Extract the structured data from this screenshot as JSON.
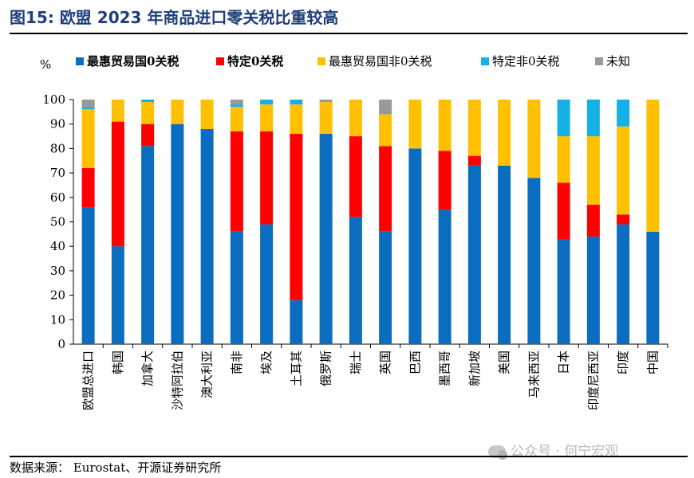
{
  "header": {
    "figure_no": "图15:",
    "title": "欧盟 2023 年商品进口零关税比重较高"
  },
  "source": {
    "text": "数据来源：  Eurostat、开源证券研究所"
  },
  "watermark": {
    "text": "公众号 · 何宁宏观"
  },
  "chart_data": {
    "type": "bar",
    "stacked": true,
    "title": "欧盟 2023 年商品进口零关税比重较高",
    "ylabel": "%",
    "xlabel": "",
    "ylim": [
      0,
      100
    ],
    "yticks": [
      0,
      10,
      20,
      30,
      40,
      50,
      60,
      70,
      80,
      90,
      100
    ],
    "legend_position": "top",
    "categories": [
      "欧盟总进口",
      "韩国",
      "加拿大",
      "沙特阿拉伯",
      "澳大利亚",
      "南非",
      "埃及",
      "土耳其",
      "俄罗斯",
      "瑞士",
      "英国",
      "巴西",
      "墨西哥",
      "新加坡",
      "美国",
      "马来西亚",
      "日本",
      "印度尼西亚",
      "印度",
      "中国"
    ],
    "series": [
      {
        "name": "最惠贸易国0关税",
        "color": "#0b6dbf",
        "values": [
          56,
          40,
          81,
          90,
          88,
          46,
          49,
          18,
          86,
          52,
          46,
          80,
          55,
          73,
          73,
          68,
          43,
          44,
          49,
          46
        ]
      },
      {
        "name": "特定0关税",
        "color": "#ff0000",
        "values": [
          16,
          51,
          9,
          0,
          0,
          41,
          38,
          68,
          0,
          33,
          35,
          0,
          24,
          4,
          0,
          0,
          23,
          13,
          4,
          0
        ]
      },
      {
        "name": "最惠贸易国非0关税",
        "color": "#ffc000",
        "values": [
          24,
          9,
          9,
          10,
          12,
          10,
          11,
          12,
          13,
          15,
          13,
          20,
          21,
          23,
          27,
          32,
          19,
          28,
          36,
          54
        ]
      },
      {
        "name": "特定非0关税",
        "color": "#14b1e7",
        "values": [
          1,
          0,
          1,
          0,
          0,
          1,
          2,
          2,
          0,
          0,
          0,
          0,
          0,
          0,
          0,
          0,
          15,
          15,
          11,
          0
        ]
      },
      {
        "name": "未知",
        "color": "#999999",
        "values": [
          3,
          0,
          0,
          0,
          0,
          2,
          0,
          0,
          1,
          0,
          6,
          0,
          0,
          0,
          0,
          0,
          0,
          0,
          0,
          0
        ]
      }
    ]
  }
}
